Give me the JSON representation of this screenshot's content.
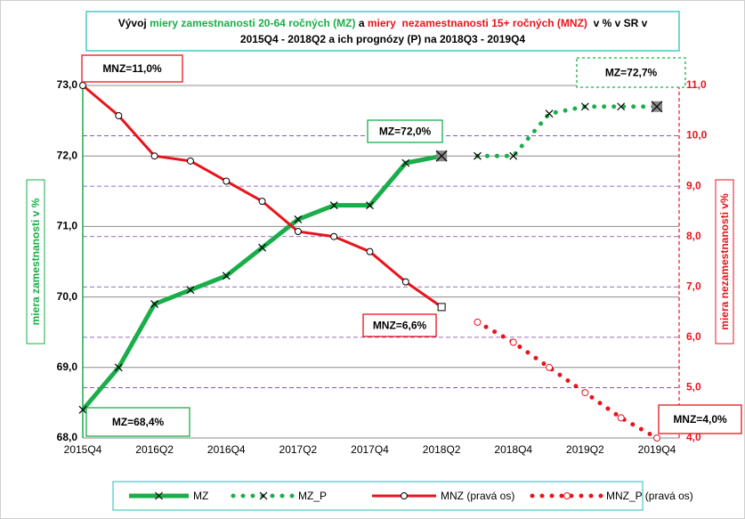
{
  "chart_data": {
    "type": "line",
    "title_parts": [
      {
        "text": "Vývoj ",
        "color": "#000000"
      },
      {
        "text": "miery zamestnanosti 20-64 ročných (MZ)",
        "color": "#1aae4a"
      },
      {
        "text": " a ",
        "color": "#000000"
      },
      {
        "text": "miery  nezamestnanosti 15+ ročných (MNZ)",
        "color": "#e8141c"
      },
      {
        "text": "  v % v SR v",
        "color": "#000000"
      }
    ],
    "subtitle": "2015Q4 - 2018Q2 a ich prognózy (P) na 2018Q3 - 2019Q4",
    "ylabel": "miera zamestnanosti  v %",
    "y2label": "miera nezamestnanosti v%",
    "categories": [
      "2015Q4",
      null,
      "2016Q2",
      null,
      "2016Q4",
      null,
      "2017Q2",
      null,
      "2017Q4",
      null,
      "2018Q2",
      null,
      "2018Q4",
      null,
      "2019Q2",
      null,
      "2019Q4"
    ],
    "ylim": [
      68,
      73
    ],
    "yticks": [
      {
        "value": 68,
        "label": "68,0"
      },
      {
        "value": 69,
        "label": "69,0"
      },
      {
        "value": 70,
        "label": "70,0"
      },
      {
        "value": 71,
        "label": "71,0"
      },
      {
        "value": 72,
        "label": "72,0"
      },
      {
        "value": 73,
        "label": "73,0"
      }
    ],
    "y2lim": [
      4,
      11
    ],
    "y2ticks": [
      {
        "value": 4,
        "label": "4,0"
      },
      {
        "value": 5,
        "label": "5,0"
      },
      {
        "value": 6,
        "label": "6,0"
      },
      {
        "value": 7,
        "label": "7,0"
      },
      {
        "value": 8,
        "label": "8,0"
      },
      {
        "value": 9,
        "label": "9,0"
      },
      {
        "value": 10,
        "label": "10,0"
      },
      {
        "value": 11,
        "label": "11,0"
      }
    ],
    "grid": true,
    "series": [
      {
        "name": "MZ",
        "color": "#1aae4a",
        "style": "solid",
        "marker": "x",
        "axis": "y",
        "values": [
          68.4,
          69.0,
          69.9,
          70.1,
          70.3,
          70.7,
          71.1,
          71.3,
          71.3,
          71.9,
          72.0,
          null,
          null,
          null,
          null,
          null,
          null
        ]
      },
      {
        "name": "MZ_P",
        "color": "#1aae4a",
        "style": "dotted",
        "marker": "x",
        "axis": "y",
        "values": [
          null,
          null,
          null,
          null,
          null,
          null,
          null,
          null,
          null,
          null,
          null,
          72.0,
          72.0,
          72.6,
          72.7,
          72.7,
          72.7
        ]
      },
      {
        "name": "MNZ (pravá os)",
        "color": "#e8141c",
        "style": "solid",
        "marker": "circle",
        "axis": "y2",
        "values": [
          11.0,
          10.4,
          9.6,
          9.5,
          9.1,
          8.7,
          8.1,
          8.0,
          7.7,
          7.1,
          6.6,
          null,
          null,
          null,
          null,
          null,
          null
        ]
      },
      {
        "name": "MNZ_P (pravá os)",
        "color": "#e8141c",
        "style": "dotted",
        "marker": "circle",
        "axis": "y2",
        "values": [
          null,
          null,
          null,
          null,
          null,
          null,
          null,
          null,
          null,
          null,
          null,
          6.3,
          5.9,
          5.4,
          4.9,
          4.4,
          4.0
        ]
      }
    ],
    "annotations": [
      {
        "text": "MNZ=11,0%",
        "color": "#e8141c"
      },
      {
        "text": "MZ=72,0%",
        "color": "#1aae4a"
      },
      {
        "text": "MZ=72,7%",
        "color": "#1aae4a"
      },
      {
        "text": "MNZ=6,6%",
        "color": "#e8141c"
      },
      {
        "text": "MZ=68,4%",
        "color": "#1aae4a"
      },
      {
        "text": "MNZ=4,0%",
        "color": "#e8141c"
      }
    ]
  }
}
